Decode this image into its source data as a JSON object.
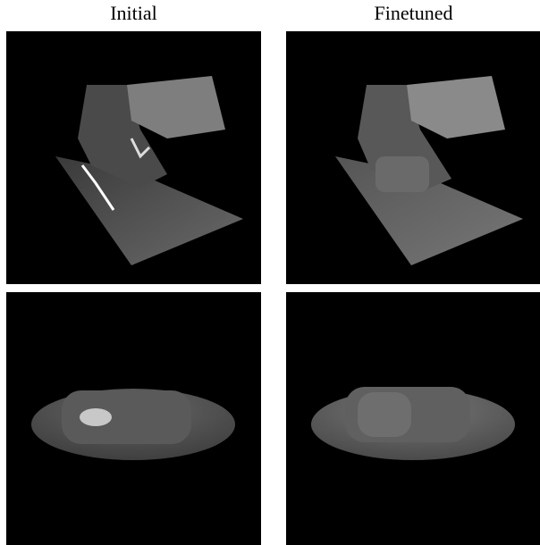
{
  "figure": {
    "columns": [
      "Initial",
      "Finetuned"
    ]
  }
}
